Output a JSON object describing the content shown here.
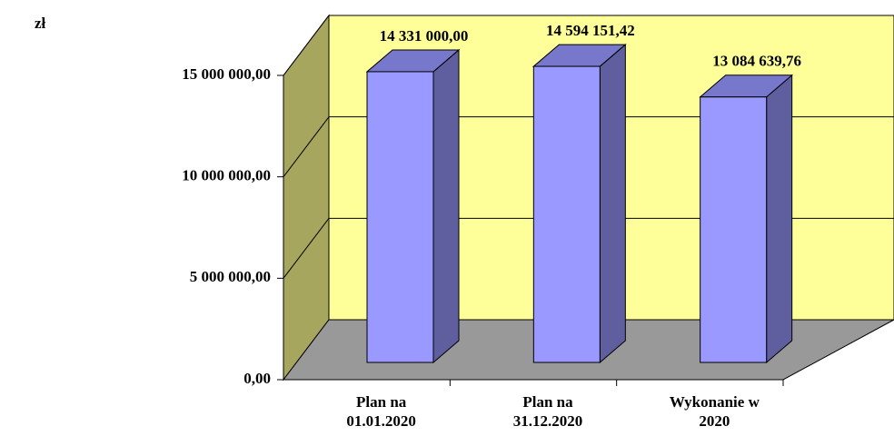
{
  "chart_data": {
    "type": "bar3d",
    "ylabel": "zł",
    "categories": [
      "Plan na 01.01.2020",
      "Plan na 31.12.2020",
      "Wykonanie w 2020"
    ],
    "values": [
      14331000,
      14594151.42,
      13084639.76
    ],
    "value_labels": [
      "14 331 000,00",
      "14 594 151,42",
      "13 084 639,76"
    ],
    "color": "#9999ff",
    "ylim": [
      0,
      15000000
    ],
    "yticks": [
      {
        "value": 0,
        "label": "0,00"
      },
      {
        "value": 5000000,
        "label": "5 000 000,00"
      },
      {
        "value": 10000000,
        "label": "10 000 000,00"
      },
      {
        "value": 15000000,
        "label": "15 000 000,00"
      }
    ],
    "grid": true
  }
}
